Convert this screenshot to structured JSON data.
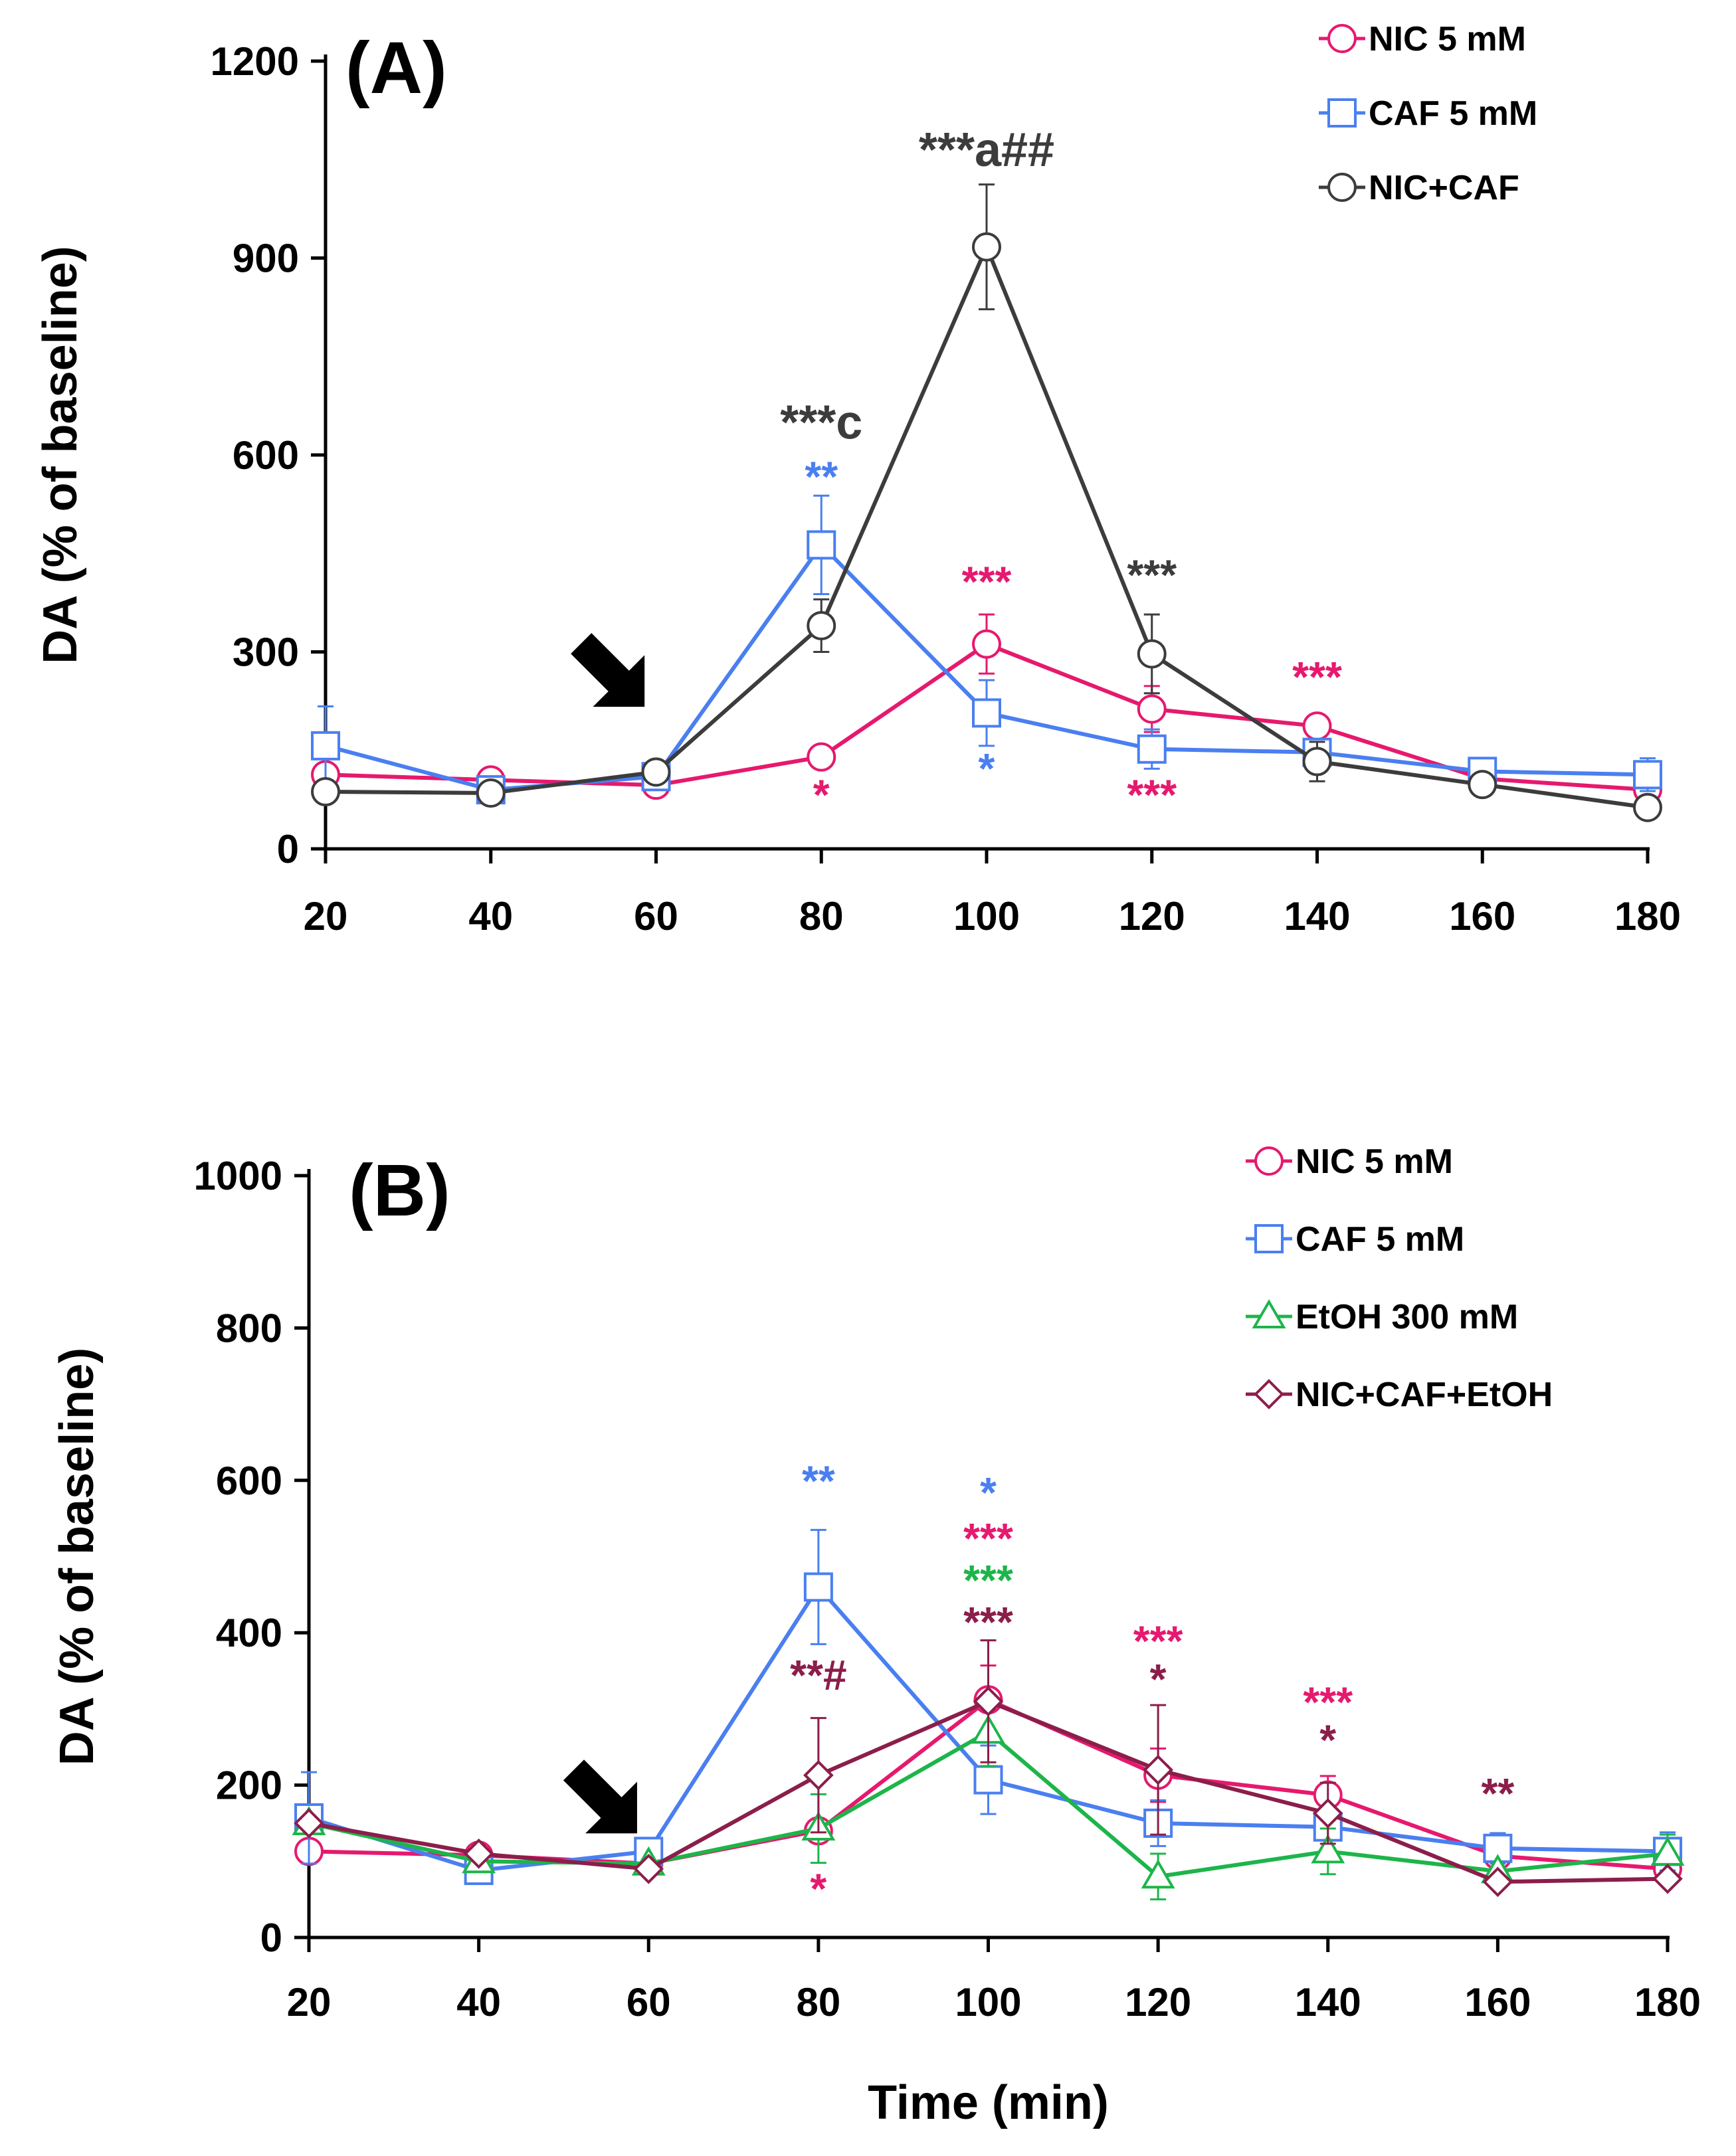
{
  "chart_data": [
    {
      "panel_label": "(A)",
      "type": "line",
      "ylabel": "DA (% of baseline)",
      "xlabel": "",
      "x": [
        20,
        40,
        60,
        80,
        100,
        120,
        140,
        160,
        180
      ],
      "xticks": [
        "20",
        "40",
        "60",
        "80",
        "100",
        "120",
        "140",
        "160",
        "180"
      ],
      "ylim": [
        0,
        1200
      ],
      "yticks": [
        "0",
        "300",
        "600",
        "900",
        "1200"
      ],
      "ytick_values": [
        0,
        300,
        600,
        900,
        1200
      ],
      "arrow_at_x": 60,
      "series": [
        {
          "name": "NIC 5 mM",
          "color": "#e6196e",
          "marker": "circle",
          "values": [
            113,
            105,
            97,
            140,
            312,
            213,
            187,
            107,
            90
          ],
          "errors": [
            0,
            0,
            0,
            0,
            45,
            35,
            0,
            0,
            0
          ]
        },
        {
          "name": "CAF 5 mM",
          "color": "#4a7ff0",
          "marker": "square",
          "values": [
            157,
            90,
            110,
            463,
            207,
            152,
            147,
            118,
            113
          ],
          "errors": [
            60,
            0,
            0,
            75,
            50,
            30,
            0,
            20,
            25
          ]
        },
        {
          "name": "NIC+CAF",
          "color": "#3c3c3c",
          "marker": "circle",
          "values": [
            87,
            85,
            117,
            340,
            917,
            297,
            133,
            98,
            63
          ],
          "errors": [
            0,
            0,
            0,
            40,
            95,
            60,
            30,
            0,
            0
          ]
        }
      ],
      "annotations": [
        {
          "text": "**",
          "x": 80,
          "y": 545,
          "color": "#4a7ff0"
        },
        {
          "text": "***c",
          "x": 80,
          "y": 625,
          "color": "#3c3c3c"
        },
        {
          "text": "*",
          "x": 80,
          "y": 60,
          "color": "#e6196e"
        },
        {
          "text": "***a##",
          "x": 100,
          "y": 1040,
          "color": "#3c3c3c"
        },
        {
          "text": "***",
          "x": 100,
          "y": 385,
          "color": "#e6196e"
        },
        {
          "text": "*",
          "x": 100,
          "y": 100,
          "color": "#4a7ff0"
        },
        {
          "text": "***",
          "x": 120,
          "y": 395,
          "color": "#3c3c3c"
        },
        {
          "text": "***",
          "x": 120,
          "y": 60,
          "color": "#e6196e"
        },
        {
          "text": "***",
          "x": 140,
          "y": 240,
          "color": "#e6196e"
        }
      ]
    },
    {
      "panel_label": "(B)",
      "type": "line",
      "ylabel": "DA (% of baseline)",
      "xlabel": "Time (min)",
      "x": [
        20,
        40,
        60,
        80,
        100,
        120,
        140,
        160,
        180
      ],
      "xticks": [
        "20",
        "40",
        "60",
        "80",
        "100",
        "120",
        "140",
        "160",
        "180"
      ],
      "ylim": [
        0,
        1000
      ],
      "yticks": [
        "0",
        "200",
        "400",
        "600",
        "800",
        "1000"
      ],
      "ytick_values": [
        0,
        200,
        400,
        600,
        800,
        1000
      ],
      "arrow_at_x": 60,
      "series": [
        {
          "name": "NIC 5 mM",
          "color": "#e6196e",
          "marker": "circle",
          "values": [
            113,
            108,
            97,
            140,
            312,
            213,
            187,
            107,
            90
          ],
          "errors": [
            0,
            0,
            0,
            0,
            45,
            35,
            25,
            0,
            0
          ]
        },
        {
          "name": "CAF 5 mM",
          "color": "#4a7ff0",
          "marker": "square",
          "values": [
            157,
            88,
            113,
            460,
            207,
            150,
            145,
            117,
            113
          ],
          "errors": [
            60,
            0,
            0,
            75,
            45,
            30,
            0,
            20,
            25
          ]
        },
        {
          "name": "EtOH 300 mM",
          "color": "#1db54a",
          "marker": "triangle",
          "values": [
            150,
            100,
            97,
            143,
            270,
            80,
            113,
            87,
            110
          ],
          "errors": [
            0,
            0,
            0,
            45,
            45,
            30,
            30,
            0,
            25
          ]
        },
        {
          "name": "NIC+CAF+EtOH",
          "color": "#8b1e4a",
          "marker": "diamond",
          "values": [
            150,
            110,
            90,
            213,
            310,
            220,
            163,
            73,
            77
          ],
          "errors": [
            0,
            0,
            0,
            75,
            80,
            85,
            40,
            0,
            0
          ]
        }
      ],
      "annotations": [
        {
          "text": "**",
          "x": 80,
          "y": 580,
          "color": "#4a7ff0"
        },
        {
          "text": "**#",
          "x": 80,
          "y": 325,
          "color": "#8b1e4a"
        },
        {
          "text": "*",
          "x": 80,
          "y": 45,
          "color": "#e6196e"
        },
        {
          "text": "*",
          "x": 100,
          "y": 565,
          "color": "#4a7ff0"
        },
        {
          "text": "***",
          "x": 100,
          "y": 505,
          "color": "#e6196e"
        },
        {
          "text": "***",
          "x": 100,
          "y": 450,
          "color": "#1db54a"
        },
        {
          "text": "***",
          "x": 100,
          "y": 395,
          "color": "#8b1e4a"
        },
        {
          "text": "***",
          "x": 120,
          "y": 370,
          "color": "#e6196e"
        },
        {
          "text": "*",
          "x": 120,
          "y": 320,
          "color": "#8b1e4a"
        },
        {
          "text": "***",
          "x": 140,
          "y": 290,
          "color": "#e6196e"
        },
        {
          "text": "*",
          "x": 140,
          "y": 240,
          "color": "#8b1e4a"
        },
        {
          "text": "**",
          "x": 160,
          "y": 170,
          "color": "#8b1e4a"
        }
      ]
    }
  ]
}
